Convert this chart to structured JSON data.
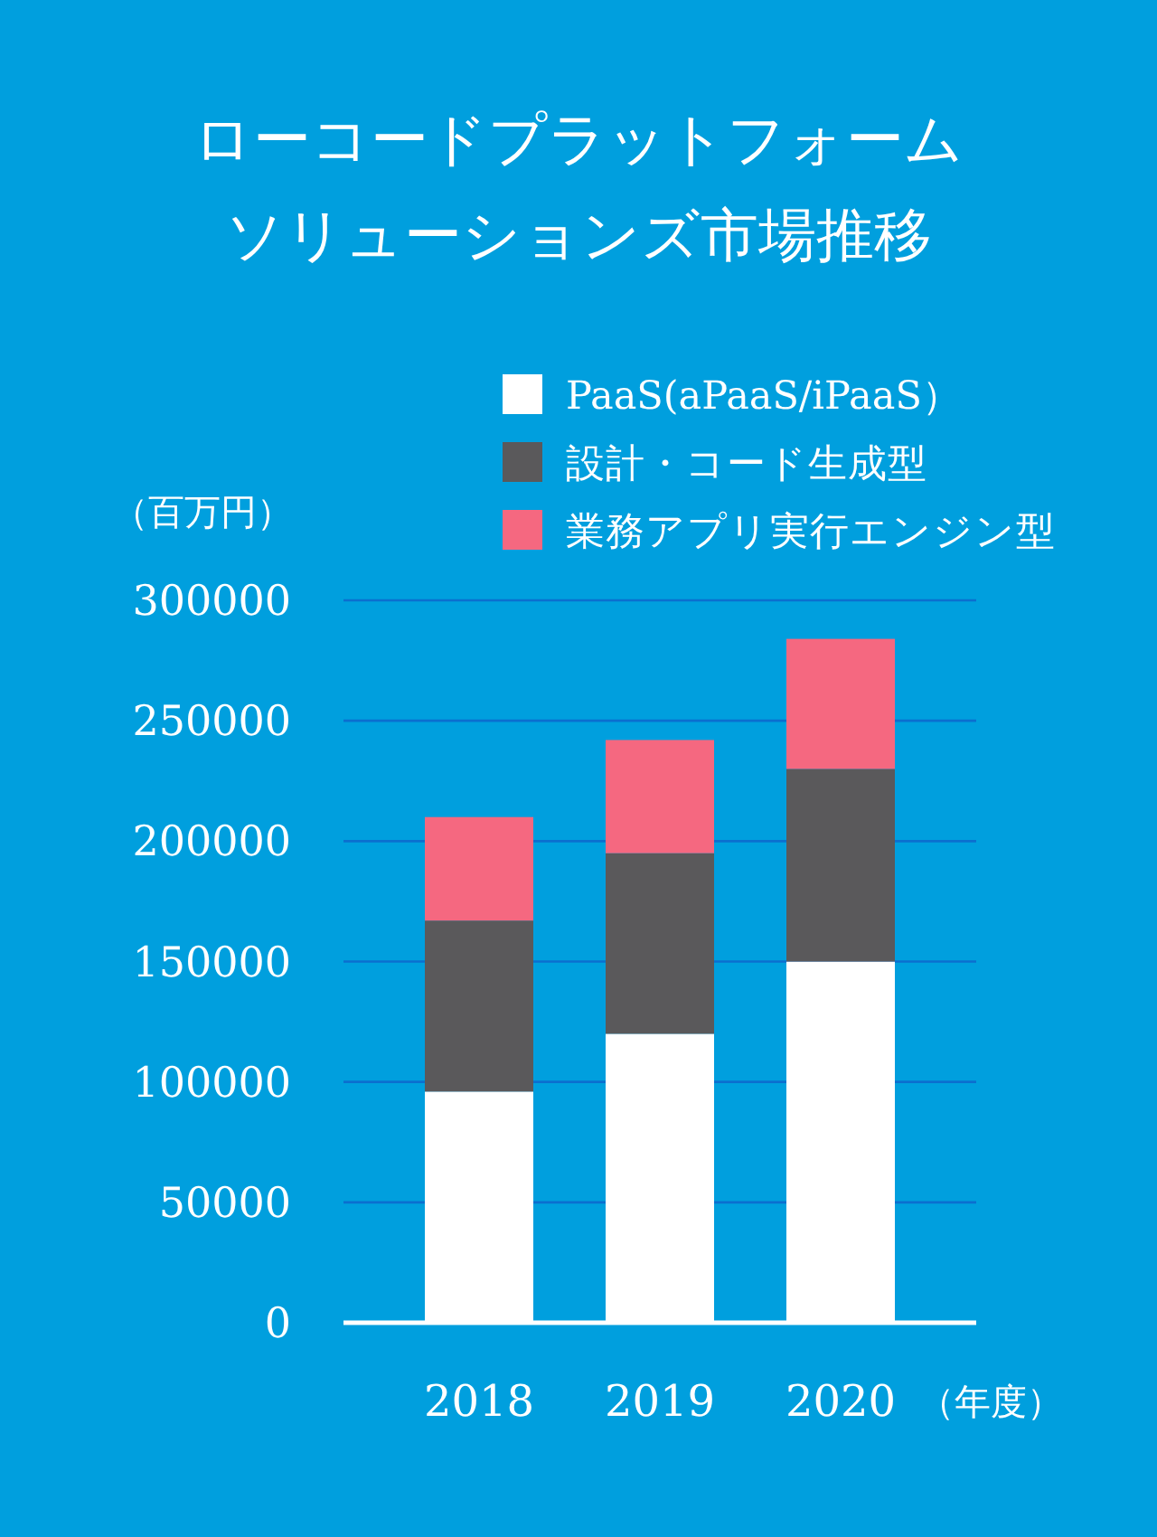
{
  "chart_data": {
    "type": "bar",
    "title": "ローコードプラットフォームソリューションズ市場推移",
    "xlabel": "（年度）",
    "ylabel": "（百万円）",
    "categories": [
      "2018",
      "2019",
      "2020"
    ],
    "series": [
      {
        "name": "PaaS(aPaaS/iPaaS）",
        "color": "#ffffff",
        "values": [
          96000,
          120000,
          150000
        ]
      },
      {
        "name": "設計・コード生成型",
        "color": "#5a595b",
        "values": [
          71000,
          75000,
          80000
        ]
      },
      {
        "name": "業務アプリ実行エンジン型",
        "color": "#f56880",
        "values": [
          43000,
          47000,
          54000
        ]
      }
    ],
    "stacked": true,
    "ylim": [
      0,
      300000
    ],
    "yticks": [
      0,
      50000,
      100000,
      150000,
      200000,
      250000,
      300000
    ],
    "grid": "y",
    "legend": "top right"
  }
}
